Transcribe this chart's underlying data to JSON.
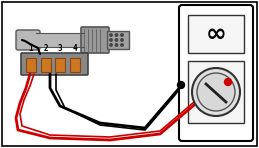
{
  "bg_color": "#ffffff",
  "border_color": "#000000",
  "sensor_gray": "#b8b8b8",
  "sensor_dark": "#888888",
  "sensor_mid": "#a0a0a0",
  "nut_color": "#999999",
  "connector_shell": "#888888",
  "connector_slots": "#cc7722",
  "pin_labels": [
    "1",
    "2",
    "3",
    "4"
  ],
  "wire_black": "#000000",
  "wire_red": "#cc0000",
  "mm_bg": "#ffffff",
  "figsize": [
    2.59,
    1.48
  ],
  "dpi": 100
}
